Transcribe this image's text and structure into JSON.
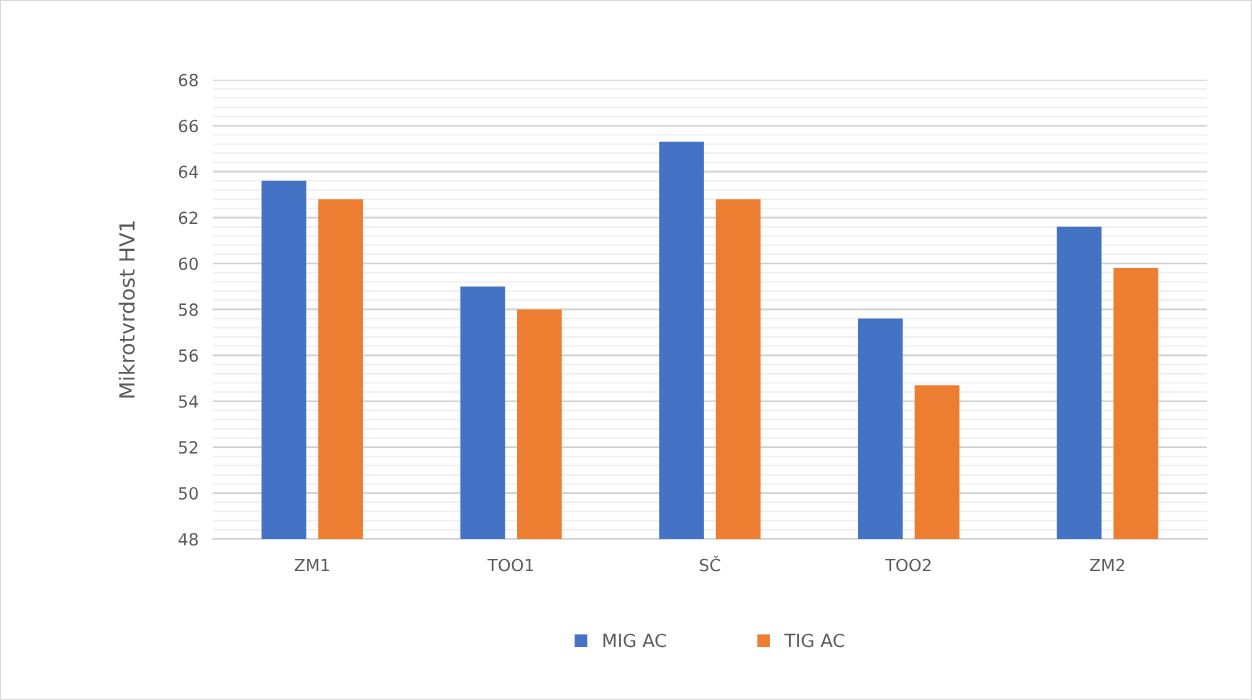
{
  "chart_data": {
    "type": "bar",
    "ylabel": "Mikrotvrdost HV1",
    "categories": [
      "ZM1",
      "TOO1",
      "SČ",
      "TOO2",
      "ZM2"
    ],
    "series": [
      {
        "name": "MIG AC",
        "color": "#4472c4",
        "values": [
          63.6,
          59.0,
          65.3,
          57.6,
          61.6
        ]
      },
      {
        "name": "TIG AC",
        "color": "#ed7d31",
        "values": [
          62.8,
          58.0,
          62.8,
          54.7,
          59.8
        ]
      }
    ],
    "ylim": [
      48,
      68
    ],
    "yticks": [
      48,
      50,
      52,
      54,
      56,
      58,
      60,
      62,
      64,
      66,
      68
    ],
    "grid": "y",
    "legend": "bottom"
  }
}
